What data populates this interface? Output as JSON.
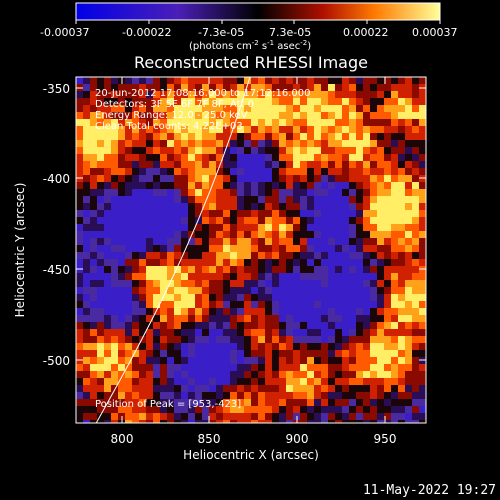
{
  "colorbar": {
    "ticks": [
      "-0.00037",
      "-0.00022",
      "-7.3e-05",
      "7.3e-05",
      "0.00022",
      "0.00037"
    ],
    "units_main": "(photons cm",
    "units_exp1": "-2",
    "units_mid": " s",
    "units_exp2": "-1",
    "units_end": " asec",
    "units_exp3": "-2",
    "units_close": ")",
    "range": [
      -0.00037,
      0.00037
    ],
    "colors": {
      "negative": "#0000e6",
      "zero": "#000000",
      "positive_mid": "#e02000",
      "positive_high": "#ffff66"
    }
  },
  "plot": {
    "title": "Reconstructed RHESSI Image",
    "xlabel": "Heliocentric X (arcsec)",
    "ylabel": "Heliocentric Y (arcsec)",
    "x_ticks": [
      "800",
      "850",
      "900",
      "950"
    ],
    "y_ticks": [
      "-350",
      "-400",
      "-450",
      "-500"
    ],
    "xlim": [
      776,
      967
    ],
    "ylim": [
      -534,
      -342
    ],
    "limb_line": "limb curve",
    "annotations": {
      "time": "20-Jun-2012 17:08:16.000 to 17:12:16.000",
      "detectors": "Detectors: 3F 5F 6F 7F 8F, Att 0",
      "energy": "Energy Range: 12.0 - 25.0 keV",
      "clean": "Clean     Total counts: 4.22E+03",
      "peak": "Position of Peak = [953,-423]"
    }
  },
  "footer": {
    "timestamp": "11-May-2022 19:27"
  },
  "chart_data": {
    "type": "heatmap",
    "title": "Reconstructed RHESSI Image",
    "xlabel": "Heliocentric X (arcsec)",
    "ylabel": "Heliocentric Y (arcsec)",
    "xlim": [
      776,
      967
    ],
    "ylim": [
      -534,
      -342
    ],
    "colorbar_range": [
      -0.00037,
      0.00037
    ],
    "peak": [
      953,
      -423
    ]
  }
}
